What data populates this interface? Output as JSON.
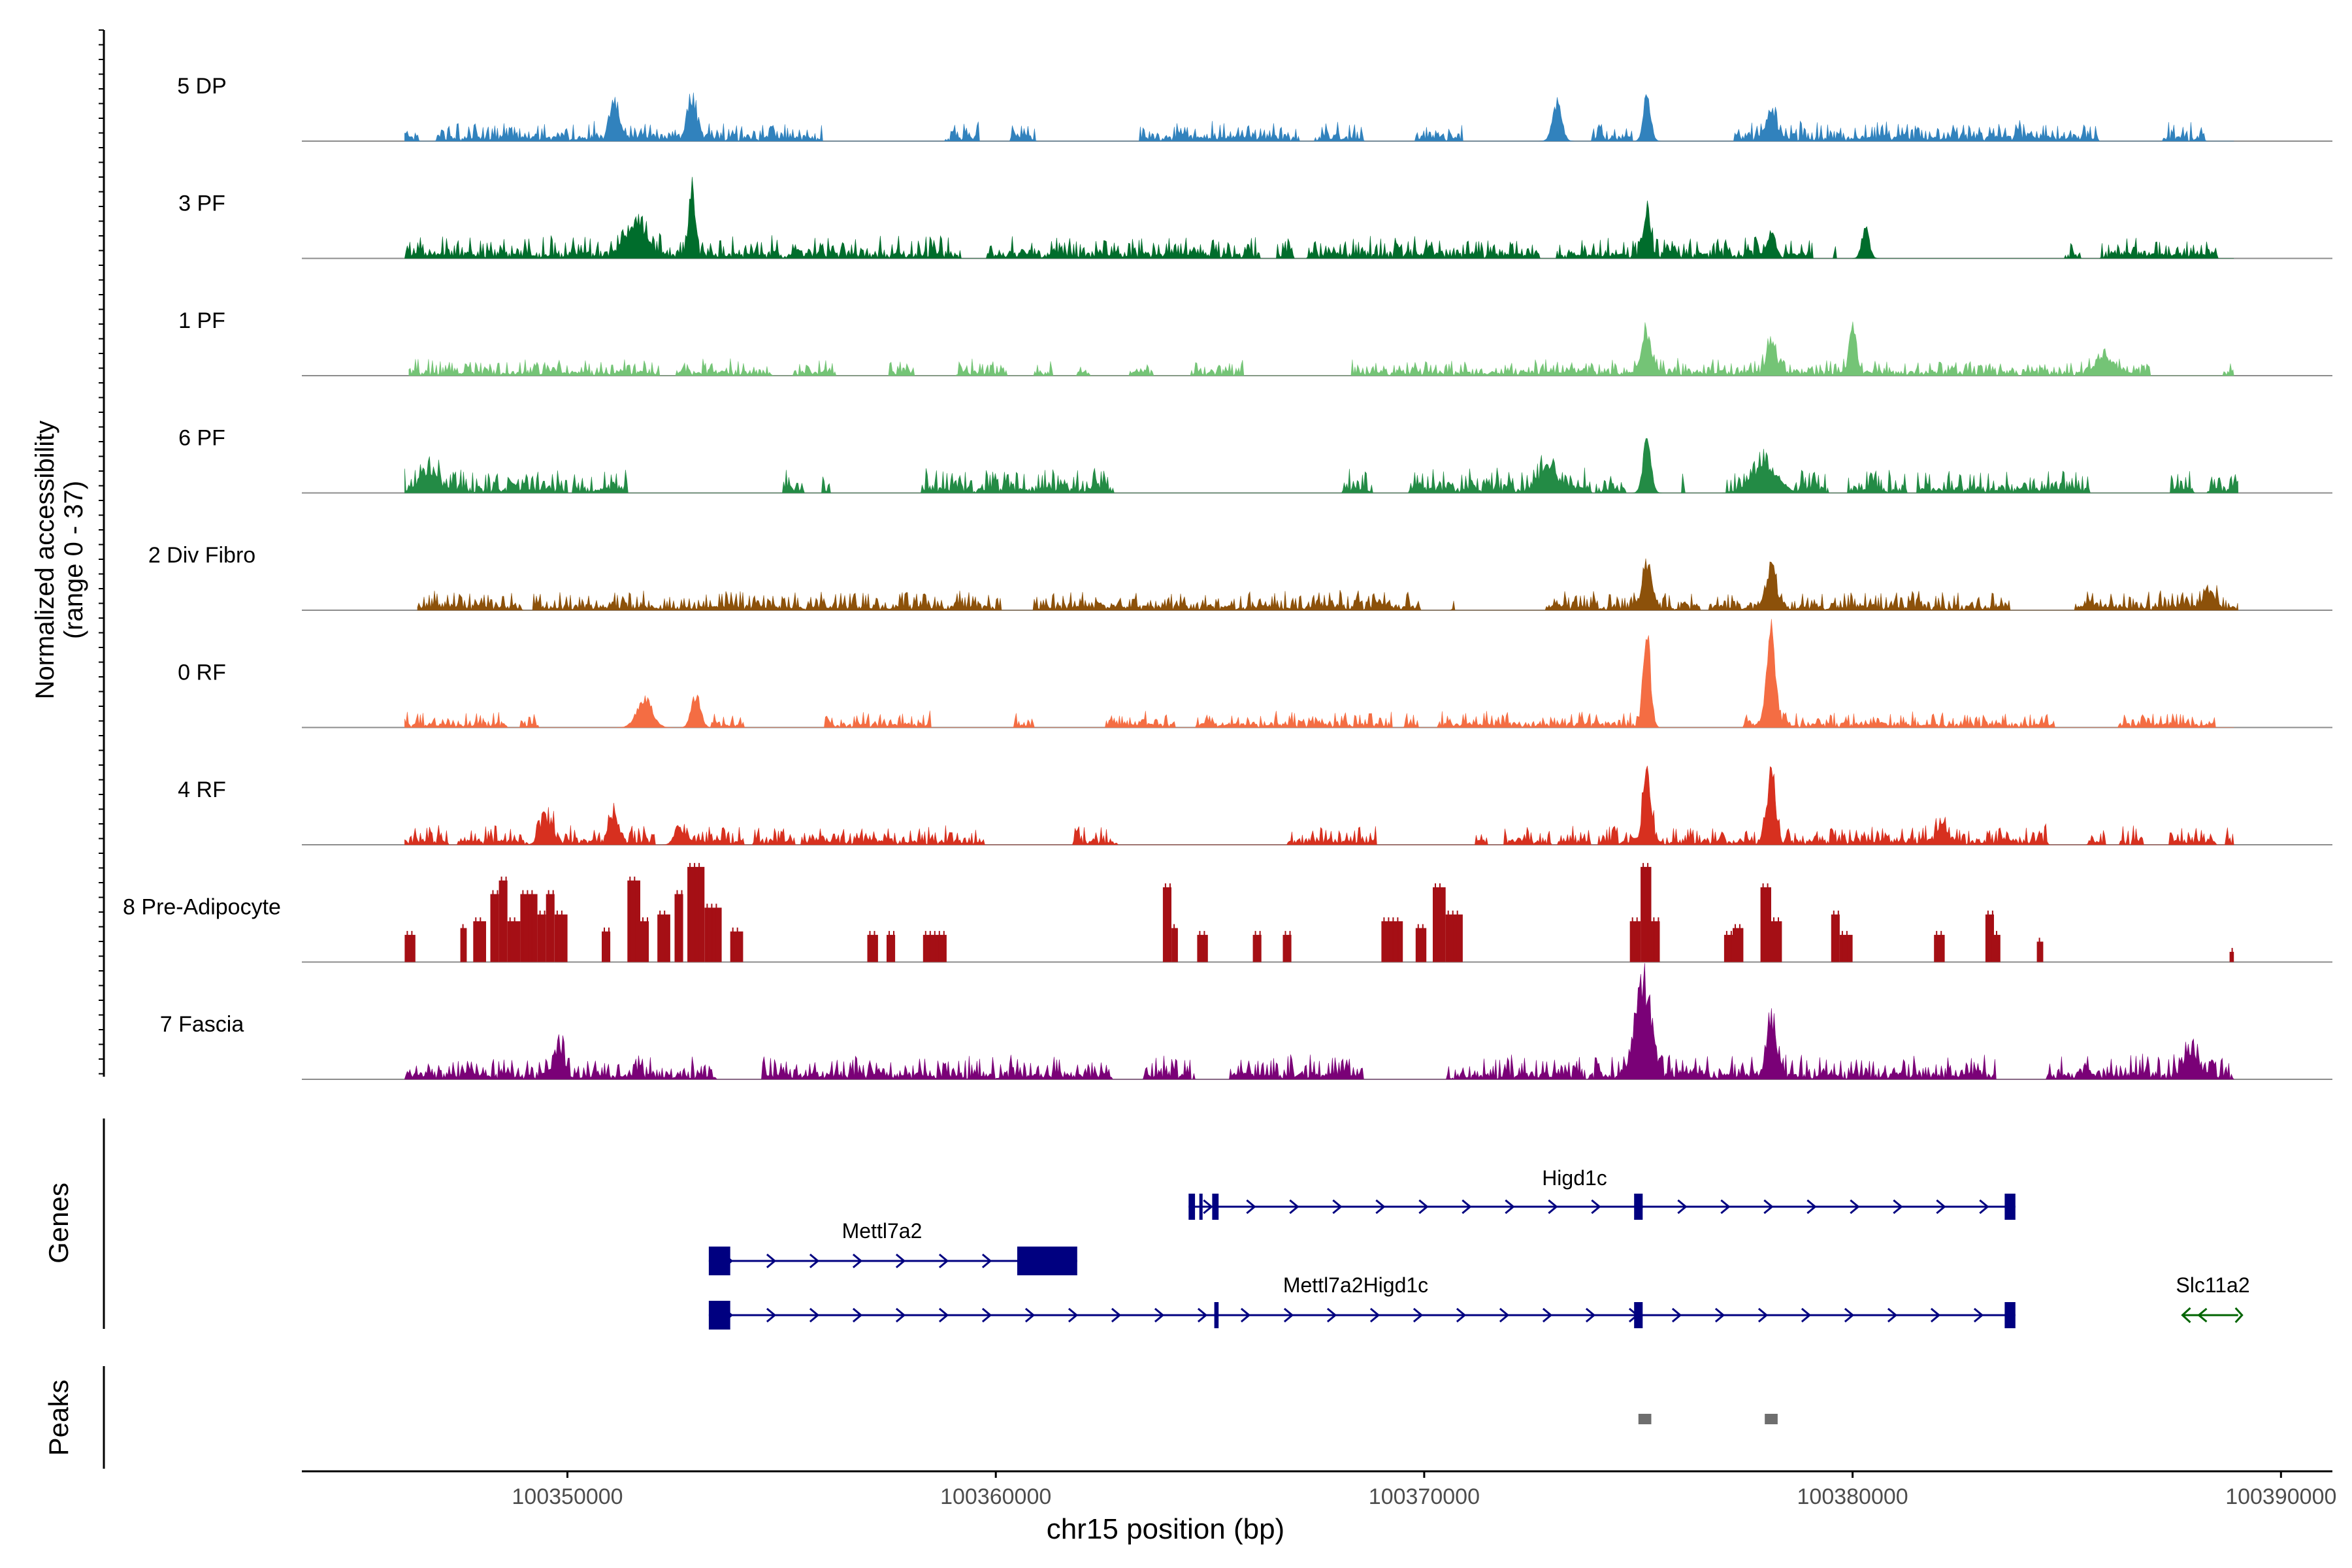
{
  "chart_data": {
    "type": "area",
    "title": "",
    "ylabel_line1": "Normalized accessibility",
    "ylabel_line2": "(range 0 - 37)",
    "xlabel": "chr15 position (bp)",
    "x_range": [
      100343800,
      100391200
    ],
    "x_ticks": [
      {
        "value": 100350000,
        "label": "100350000"
      },
      {
        "value": 100360000,
        "label": "100360000"
      },
      {
        "value": 100370000,
        "label": "100370000"
      },
      {
        "value": 100380000,
        "label": "100380000"
      },
      {
        "value": 100390000,
        "label": "100390000"
      }
    ],
    "y_range": [
      0,
      37
    ],
    "tracks": [
      {
        "name": "5 DP",
        "color": "#3182BD",
        "start": 100346200,
        "end": 100388900,
        "base": 1.5,
        "noise": 2.2,
        "density": 0.55,
        "peaks": [
          [
            100351100,
            11,
            150
          ],
          [
            100352900,
            12,
            150
          ],
          [
            100373100,
            12,
            150
          ],
          [
            100375200,
            14,
            120
          ],
          [
            100378100,
            9,
            150
          ]
        ]
      },
      {
        "name": "3 PF",
        "color": "#006D2C",
        "start": 100346200,
        "end": 100388900,
        "base": 1.5,
        "noise": 2.6,
        "density": 0.6,
        "peaks": [
          [
            100351600,
            10,
            350
          ],
          [
            100352900,
            19,
            110
          ],
          [
            100375200,
            13,
            110
          ],
          [
            100378100,
            8,
            150
          ],
          [
            100380300,
            10,
            120
          ]
        ]
      },
      {
        "name": "1 PF",
        "color": "#74C476",
        "start": 100346300,
        "end": 100388900,
        "base": 1.3,
        "noise": 1.8,
        "density": 0.5,
        "peaks": [
          [
            100375200,
            12,
            150
          ],
          [
            100378100,
            10,
            150
          ],
          [
            100380000,
            14,
            120
          ],
          [
            100385900,
            5,
            300
          ]
        ]
      },
      {
        "name": "6 PF",
        "color": "#238B45",
        "start": 100346200,
        "end": 100389000,
        "base": 1.5,
        "noise": 2.8,
        "density": 0.48,
        "peaks": [
          [
            100346800,
            5,
            300
          ],
          [
            100372900,
            7,
            300
          ],
          [
            100375200,
            16,
            130
          ],
          [
            100378000,
            8,
            400
          ]
        ]
      },
      {
        "name": "2 Div Fibro",
        "color": "#8C510A",
        "start": 100346500,
        "end": 100389000,
        "base": 1.3,
        "noise": 2.2,
        "density": 0.52,
        "peaks": [
          [
            100375200,
            14,
            150
          ],
          [
            100378100,
            14,
            150
          ],
          [
            100388300,
            5,
            200
          ]
        ]
      },
      {
        "name": "0 RF",
        "color": "#F46D43",
        "start": 100346200,
        "end": 100388900,
        "base": 1.2,
        "noise": 1.8,
        "density": 0.55,
        "peaks": [
          [
            100351800,
            9,
            250
          ],
          [
            100353000,
            10,
            150
          ],
          [
            100375200,
            28,
            120
          ],
          [
            100378100,
            30,
            140
          ]
        ]
      },
      {
        "name": "4 RF",
        "color": "#D7301F",
        "start": 100346200,
        "end": 100388900,
        "base": 1.4,
        "noise": 2.2,
        "density": 0.55,
        "peaks": [
          [
            100349500,
            8,
            200
          ],
          [
            100351100,
            9,
            150
          ],
          [
            100352600,
            6,
            150
          ],
          [
            100375200,
            24,
            120
          ],
          [
            100378100,
            20,
            140
          ],
          [
            100382100,
            6,
            150
          ]
        ]
      },
      {
        "name": "8 Pre-Adipocyte",
        "color": "#A50F15",
        "start": 100346200,
        "end": 100388900,
        "base": 0,
        "noise": 0,
        "density": 0,
        "style": "blocks",
        "blocks": [
          [
            100346200,
            100346450,
            8
          ],
          [
            100347500,
            100347650,
            10
          ],
          [
            100347800,
            100348100,
            12
          ],
          [
            100348200,
            100348400,
            20
          ],
          [
            100348400,
            100348600,
            24
          ],
          [
            100348600,
            100348900,
            12
          ],
          [
            100348900,
            100349300,
            20
          ],
          [
            100349300,
            100349500,
            14
          ],
          [
            100349500,
            100349700,
            20
          ],
          [
            100349700,
            100350000,
            14
          ],
          [
            100350800,
            100351000,
            9
          ],
          [
            100351400,
            100351700,
            24
          ],
          [
            100351700,
            100351900,
            12
          ],
          [
            100352100,
            100352400,
            14
          ],
          [
            100352500,
            100352700,
            20
          ],
          [
            100352800,
            100353200,
            28
          ],
          [
            100353200,
            100353600,
            16
          ],
          [
            100353800,
            100354100,
            9
          ],
          [
            100357000,
            100357250,
            8
          ],
          [
            100357450,
            100357650,
            8
          ],
          [
            100358300,
            100358850,
            8
          ],
          [
            100363900,
            100364100,
            22
          ],
          [
            100364100,
            100364250,
            10
          ],
          [
            100364700,
            100364950,
            8
          ],
          [
            100366000,
            100366200,
            8
          ],
          [
            100366700,
            100366900,
            8
          ],
          [
            100369000,
            100369500,
            12
          ],
          [
            100369800,
            100370050,
            10
          ],
          [
            100370200,
            100370500,
            22
          ],
          [
            100370500,
            100370900,
            14
          ],
          [
            100374800,
            100375050,
            12
          ],
          [
            100375050,
            100375300,
            28
          ],
          [
            100375300,
            100375500,
            12
          ],
          [
            100377000,
            100377200,
            8
          ],
          [
            100377200,
            100377450,
            10
          ],
          [
            100377850,
            100378100,
            22
          ],
          [
            100378100,
            100378350,
            12
          ],
          [
            100379500,
            100379700,
            14
          ],
          [
            100379700,
            100380000,
            8
          ],
          [
            100381900,
            100382150,
            8
          ],
          [
            100383100,
            100383300,
            14
          ],
          [
            100383300,
            100383450,
            8
          ],
          [
            100384300,
            100384450,
            6
          ],
          [
            100388800,
            100388900,
            3
          ]
        ]
      },
      {
        "name": "7 Fascia",
        "color": "#7A0177",
        "start": 100346200,
        "end": 100388900,
        "base": 1.6,
        "noise": 2.8,
        "density": 0.65,
        "peaks": [
          [
            100349800,
            10,
            150
          ],
          [
            100375100,
            28,
            250
          ],
          [
            100378100,
            17,
            160
          ],
          [
            100387900,
            7,
            250
          ]
        ]
      }
    ],
    "genes_label": "Genes",
    "genes": [
      {
        "name": "Higd1c",
        "color": "#000080",
        "start": 100364500,
        "end": 100383800,
        "strand": "+",
        "exons": [
          [
            100364500,
            100364650
          ],
          [
            100364750,
            100364800
          ],
          [
            100365050,
            100365200
          ],
          [
            100374900,
            100375100
          ],
          [
            100383550,
            100383800
          ]
        ]
      },
      {
        "name": "Mettl7a2",
        "color": "#000080",
        "start": 100353300,
        "end": 100361900,
        "strand": "+",
        "exons": [
          [
            100353300,
            100353800
          ],
          [
            100360500,
            100361900
          ]
        ]
      },
      {
        "name": "Mettl7a2Higd1c",
        "color": "#000080",
        "start": 100353300,
        "end": 100383800,
        "strand": "+",
        "exons": [
          [
            100353300,
            100353800
          ],
          [
            100365100,
            100365200
          ],
          [
            100374900,
            100375100
          ],
          [
            100383550,
            100383800
          ]
        ]
      },
      {
        "name": "Slc11a2",
        "color": "#006400",
        "start": 100387700,
        "end": 100389000,
        "strand": "-",
        "exons": []
      }
    ],
    "peaks_label": "Peaks",
    "peaks": [
      [
        100375000,
        100375300
      ],
      [
        100377950,
        100378250
      ]
    ],
    "colors": {
      "axis": "#000000",
      "baseline": "#8C8C8C",
      "peak_box": "#6E6E6E",
      "text": "#000000",
      "tick_text": "#4D4D4D"
    }
  }
}
